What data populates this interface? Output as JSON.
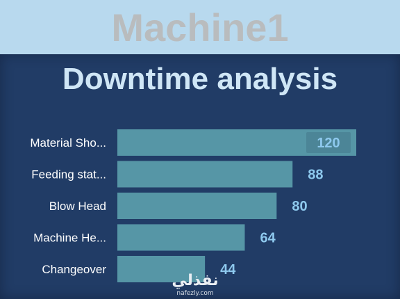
{
  "header": {
    "title": "Machine1"
  },
  "chart_data": {
    "type": "bar",
    "orientation": "horizontal",
    "title": "Downtime analysis",
    "categories": [
      "Material Sho...",
      "Feeding stat...",
      "Blow Head",
      "Machine He...",
      "Changeover"
    ],
    "values": [
      120,
      88,
      80,
      64,
      44
    ],
    "xlim": [
      0,
      120
    ],
    "grid": false,
    "colors": {
      "bar": "#5696a6",
      "label": "#8ec9ee"
    }
  },
  "watermark": {
    "logo": "نفذلي",
    "url": "nafezly.com"
  }
}
